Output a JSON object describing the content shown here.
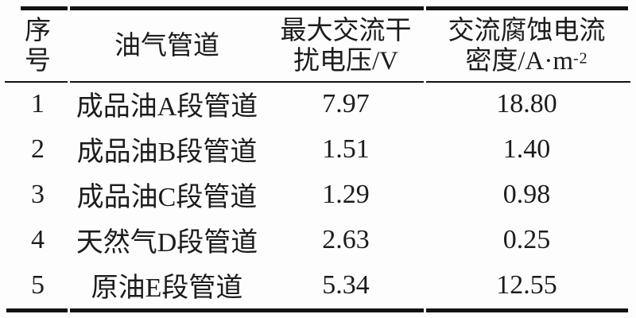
{
  "colors": {
    "background": "#fdfdfd",
    "text": "#1c1c1c",
    "rule": "#121212"
  },
  "table": {
    "columns": [
      {
        "id": "serial",
        "header_lines": [
          "序",
          "号"
        ]
      },
      {
        "id": "pipeline",
        "header_lines": [
          "油气管道"
        ]
      },
      {
        "id": "voltage",
        "header_lines": [
          "最大交流干",
          "扰电压/V"
        ]
      },
      {
        "id": "density",
        "header_lines": [
          "交流腐蚀电流",
          "密度/A·m"
        ],
        "header_superscript": "-2"
      }
    ],
    "rows": [
      [
        "1",
        "成品油A段管道",
        "7.97",
        "18.80"
      ],
      [
        "2",
        "成品油B段管道",
        "1.51",
        "1.40"
      ],
      [
        "3",
        "成品油C段管道",
        "1.29",
        "0.98"
      ],
      [
        "4",
        "天然气D段管道",
        "2.63",
        "0.25"
      ],
      [
        "5",
        "原油E段管道",
        "5.34",
        "12.55"
      ]
    ]
  },
  "chart_data": {
    "type": "table",
    "columns": [
      "序号",
      "油气管道",
      "最大交流干扰电压/V",
      "交流腐蚀电流密度/A·m⁻²"
    ],
    "rows": [
      [
        1,
        "成品油A段管道",
        7.97,
        18.8
      ],
      [
        2,
        "成品油B段管道",
        1.51,
        1.4
      ],
      [
        3,
        "成品油C段管道",
        1.29,
        0.98
      ],
      [
        4,
        "天然气D段管道",
        2.63,
        0.25
      ],
      [
        5,
        "原油E段管道",
        5.34,
        12.55
      ]
    ]
  }
}
